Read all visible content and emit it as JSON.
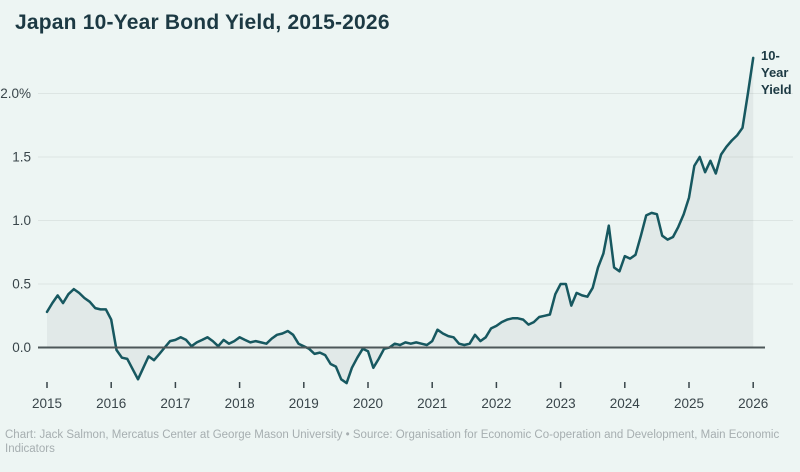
{
  "title": "Japan 10-Year Bond Yield, 2015-2026",
  "footer": "Chart: Jack Salmon, Mercatus Center at George Mason University • Source: Organisation for Economic Co-operation and Development, Main Economic Indicators",
  "annotation": {
    "label": "10-Year Yield",
    "lines": [
      "10-",
      "Year",
      "Yield"
    ]
  },
  "colors": {
    "background": "#edf5f3",
    "line": "#175860",
    "area_fill": "rgba(85,105,108,0.08)",
    "grid": "#dde5e3",
    "zero_axis": "#4d5759",
    "title_text": "#1c3943",
    "tick_text": "#39454a",
    "footer_text": "#a6aeb0"
  },
  "chart_data": {
    "type": "area",
    "title": "Japan 10-Year Bond Yield, 2015-2026",
    "xlabel": "",
    "ylabel": "",
    "unit": "%",
    "grid": "horizontal",
    "legend": "none",
    "xlim": [
      2015,
      2026.35
    ],
    "ylim": [
      -0.35,
      2.35
    ],
    "x_ticks": [
      "2015",
      "2016",
      "2017",
      "2018",
      "2019",
      "2020",
      "2021",
      "2022",
      "2023",
      "2024",
      "2025",
      "2026"
    ],
    "y_ticks": [
      {
        "value": 0.0,
        "label": "0.0"
      },
      {
        "value": 0.5,
        "label": "0.5"
      },
      {
        "value": 1.0,
        "label": "1.0"
      },
      {
        "value": 1.5,
        "label": "1.5"
      },
      {
        "value": 2.0,
        "label": "2.0%"
      }
    ],
    "series": [
      {
        "name": "10-Year Yield",
        "frequency": "monthly",
        "x_start_year": 2015,
        "values": [
          0.28,
          0.35,
          0.41,
          0.35,
          0.42,
          0.46,
          0.43,
          0.39,
          0.36,
          0.31,
          0.3,
          0.3,
          0.22,
          -0.02,
          -0.08,
          -0.09,
          -0.17,
          -0.25,
          -0.16,
          -0.07,
          -0.1,
          -0.05,
          0.0,
          0.05,
          0.06,
          0.08,
          0.06,
          0.01,
          0.04,
          0.06,
          0.08,
          0.05,
          0.01,
          0.06,
          0.03,
          0.05,
          0.08,
          0.06,
          0.04,
          0.05,
          0.04,
          0.03,
          0.07,
          0.1,
          0.11,
          0.13,
          0.1,
          0.03,
          0.01,
          -0.01,
          -0.05,
          -0.04,
          -0.06,
          -0.13,
          -0.15,
          -0.25,
          -0.28,
          -0.16,
          -0.08,
          -0.01,
          -0.03,
          -0.16,
          -0.09,
          -0.01,
          0.0,
          0.03,
          0.02,
          0.04,
          0.03,
          0.04,
          0.03,
          0.02,
          0.05,
          0.14,
          0.11,
          0.09,
          0.08,
          0.03,
          0.02,
          0.03,
          0.1,
          0.05,
          0.08,
          0.15,
          0.17,
          0.2,
          0.22,
          0.23,
          0.23,
          0.22,
          0.18,
          0.2,
          0.24,
          0.25,
          0.26,
          0.42,
          0.5,
          0.5,
          0.33,
          0.43,
          0.41,
          0.4,
          0.47,
          0.63,
          0.74,
          0.96,
          0.63,
          0.6,
          0.72,
          0.7,
          0.73,
          0.88,
          1.04,
          1.06,
          1.05,
          0.88,
          0.85,
          0.87,
          0.95,
          1.05,
          1.18,
          1.43,
          1.5,
          1.38,
          1.47,
          1.37,
          1.52,
          1.58,
          1.63,
          1.67,
          1.73,
          2.0,
          2.28
        ]
      }
    ]
  }
}
